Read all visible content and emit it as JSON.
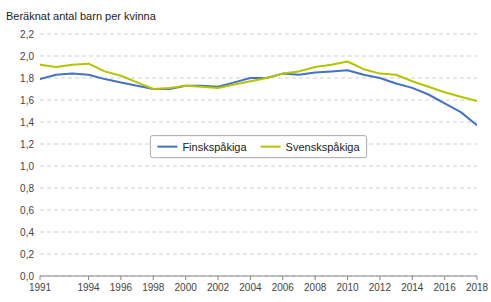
{
  "chart_data": {
    "type": "line",
    "y_label": "Beräknat antal barn per kvinna",
    "x": [
      1991,
      1992,
      1993,
      1994,
      1995,
      1996,
      1997,
      1998,
      1999,
      2000,
      2001,
      2002,
      2003,
      2004,
      2005,
      2006,
      2007,
      2008,
      2009,
      2010,
      2011,
      2012,
      2013,
      2014,
      2015,
      2016,
      2017,
      2018
    ],
    "series": [
      {
        "name": "Finskspåkiga",
        "color": "#4472C4",
        "values": [
          1.79,
          1.83,
          1.84,
          1.83,
          1.79,
          1.76,
          1.73,
          1.7,
          1.7,
          1.73,
          1.73,
          1.72,
          1.76,
          1.8,
          1.8,
          1.84,
          1.83,
          1.85,
          1.86,
          1.87,
          1.83,
          1.8,
          1.75,
          1.71,
          1.65,
          1.57,
          1.49,
          1.37
        ]
      },
      {
        "name": "Svenskspåkiga",
        "color": "#B5C400",
        "values": [
          1.92,
          1.9,
          1.92,
          1.93,
          1.86,
          1.82,
          1.76,
          1.7,
          1.71,
          1.73,
          1.72,
          1.71,
          1.74,
          1.77,
          1.8,
          1.84,
          1.86,
          1.9,
          1.92,
          1.95,
          1.88,
          1.84,
          1.83,
          1.77,
          1.72,
          1.67,
          1.63,
          1.59
        ]
      }
    ],
    "xlim": [
      1991,
      2018
    ],
    "xticks": [
      1991,
      1994,
      1996,
      1998,
      2000,
      2002,
      2004,
      2006,
      2008,
      2010,
      2012,
      2014,
      2016,
      2018
    ],
    "ylim": [
      0.0,
      2.2
    ],
    "yticks": [
      {
        "value": 0.0,
        "label": "0,0"
      },
      {
        "value": 0.2,
        "label": "0,2"
      },
      {
        "value": 0.4,
        "label": "0,4"
      },
      {
        "value": 0.6,
        "label": "0,6"
      },
      {
        "value": 0.8,
        "label": "0,8"
      },
      {
        "value": 1.0,
        "label": "1,0"
      },
      {
        "value": 1.2,
        "label": "1,2"
      },
      {
        "value": 1.4,
        "label": "1,4"
      },
      {
        "value": 1.6,
        "label": "1,6"
      },
      {
        "value": 1.8,
        "label": "1,8"
      },
      {
        "value": 2.0,
        "label": "2,0"
      },
      {
        "value": 2.2,
        "label": "2,2"
      }
    ],
    "grid": true,
    "legend": "center"
  }
}
